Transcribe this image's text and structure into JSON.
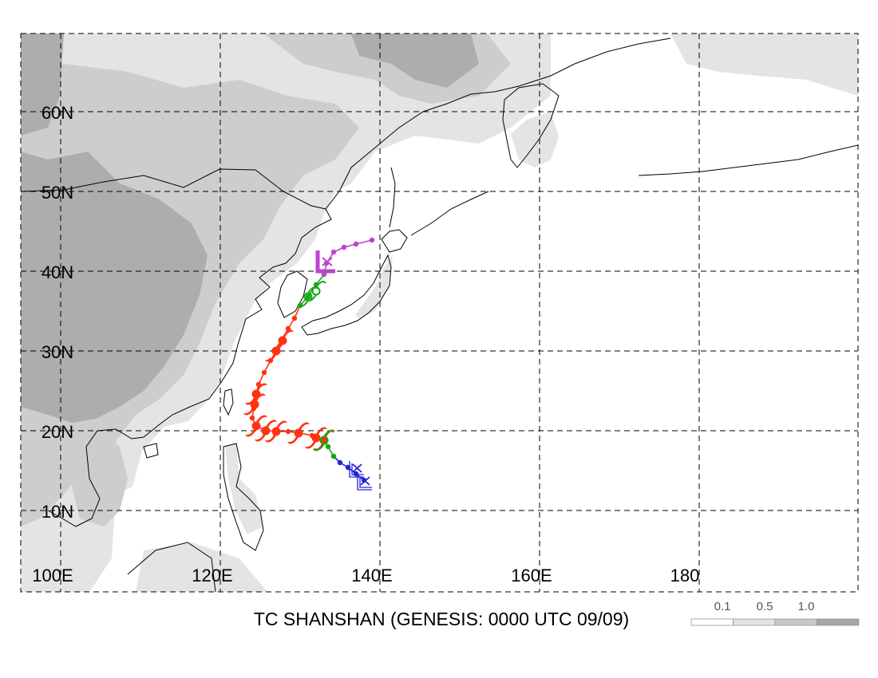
{
  "title": "TC SHANSHAN (GENESIS: 0000 UTC 09/09)",
  "lat_labels": [
    "60N",
    "50N",
    "40N",
    "30N",
    "20N",
    "10N"
  ],
  "lon_labels": [
    "100E",
    "120E",
    "140E",
    "160E",
    "180"
  ],
  "legend": {
    "labels": [
      "0.1",
      "0.5",
      "1.0"
    ],
    "colors": [
      "#ffffff",
      "#e3e3e3",
      "#c8c8c8",
      "#a6a6a6"
    ]
  },
  "shading_colors": {
    "light": "#e4e4e4",
    "mid": "#cdcdcd",
    "dark": "#adadad"
  },
  "track": {
    "segments": [
      {
        "stage": "depression-initial",
        "color": "#2222dd",
        "points": [
          [
            139.0,
            14.0
          ],
          [
            138.0,
            14.8
          ],
          [
            137.0,
            15.6
          ],
          [
            136.0,
            16.2
          ],
          [
            135.2,
            17.0
          ]
        ]
      },
      {
        "stage": "storm",
        "color": "#11aa11",
        "points": [
          [
            135.2,
            17.0
          ],
          [
            134.5,
            18.2
          ],
          [
            134.0,
            19.0
          ]
        ]
      },
      {
        "stage": "typhoon",
        "color": "#ff3311",
        "points": [
          [
            134.0,
            19.0
          ],
          [
            132.5,
            19.6
          ],
          [
            131.0,
            19.9
          ],
          [
            129.5,
            20.1
          ],
          [
            128.0,
            20.1
          ],
          [
            126.5,
            20.3
          ],
          [
            125.5,
            20.8
          ],
          [
            125.0,
            21.8
          ],
          [
            125.2,
            23.0
          ],
          [
            125.5,
            24.7
          ],
          [
            125.8,
            26.0
          ],
          [
            126.5,
            27.5
          ],
          [
            127.3,
            29.0
          ],
          [
            128.0,
            30.2
          ],
          [
            128.8,
            31.7
          ],
          [
            129.5,
            33.0
          ],
          [
            130.3,
            34.3
          ],
          [
            131.0,
            35.9
          ]
        ]
      },
      {
        "stage": "storm-late",
        "color": "#11aa11",
        "points": [
          [
            131.0,
            35.9
          ],
          [
            132.0,
            37.0
          ],
          [
            133.0,
            38.5
          ],
          [
            134.0,
            39.8
          ]
        ]
      },
      {
        "stage": "extratropical",
        "color": "#bb44cc",
        "points": [
          [
            134.0,
            39.8
          ],
          [
            134.3,
            41.2
          ],
          [
            135.2,
            42.6
          ],
          [
            136.5,
            43.2
          ],
          [
            138.0,
            43.6
          ],
          [
            140.0,
            44.1
          ]
        ]
      }
    ],
    "typhoon_symbols": [
      [
        134.0,
        19.0
      ],
      [
        133.0,
        19.3
      ],
      [
        130.8,
        19.9
      ],
      [
        128.0,
        20.1
      ],
      [
        126.7,
        20.2
      ],
      [
        125.5,
        20.8
      ],
      [
        125.3,
        23.5
      ],
      [
        125.5,
        24.8
      ],
      [
        128.0,
        30.2
      ],
      [
        128.8,
        31.5
      ]
    ],
    "storm_symbols": [
      [
        134.0,
        19.0
      ],
      [
        133.0,
        37.7
      ],
      [
        132.0,
        37.0
      ]
    ],
    "depression_symbols": [
      [
        137.6,
        15.4
      ],
      [
        138.6,
        13.8
      ]
    ],
    "extratropical_symbol": [
      133.7,
      41.3
    ]
  }
}
